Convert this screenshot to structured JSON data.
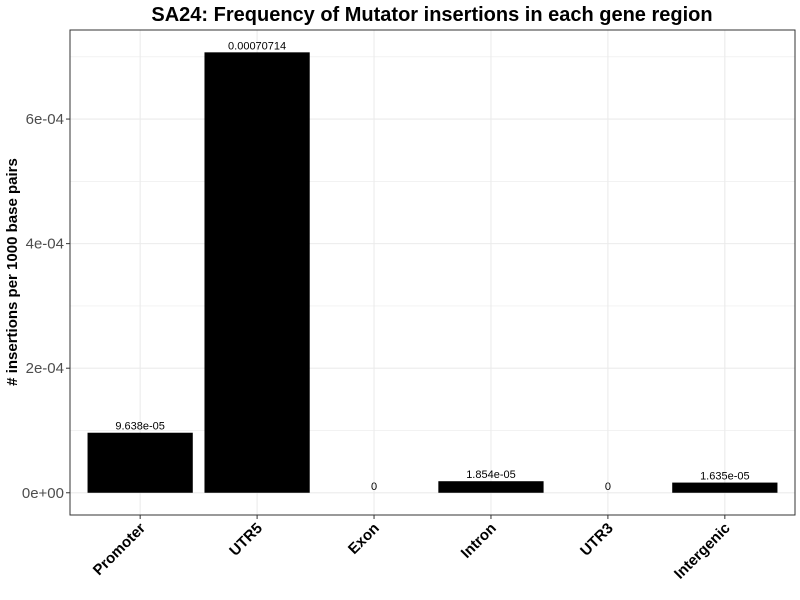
{
  "chart_data": {
    "type": "bar",
    "title": "SA24: Frequency of Mutator insertions in each gene region",
    "xlabel": "",
    "ylabel": "# insertions per 1000 base pairs",
    "categories": [
      "Promoter",
      "UTR5",
      "Exon",
      "Intron",
      "UTR3",
      "Intergenic"
    ],
    "values": [
      9.638e-05,
      0.00070714,
      0,
      1.854e-05,
      0,
      1.635e-05
    ],
    "data_labels": [
      "9.638e-05",
      "0.00070714",
      "0",
      "1.854e-05",
      "0",
      "1.635e-05"
    ],
    "ylim": [
      -3.57e-05,
      0.000743
    ],
    "yticks": [
      0,
      0.0002,
      0.0004,
      0.0006
    ],
    "ytick_labels": [
      "0e+00",
      "2e-04",
      "4e-04",
      "6e-04"
    ],
    "grid": true,
    "bar_color": "#000000",
    "grid_color": "#ebebeb",
    "panel_border_color": "#333333"
  }
}
